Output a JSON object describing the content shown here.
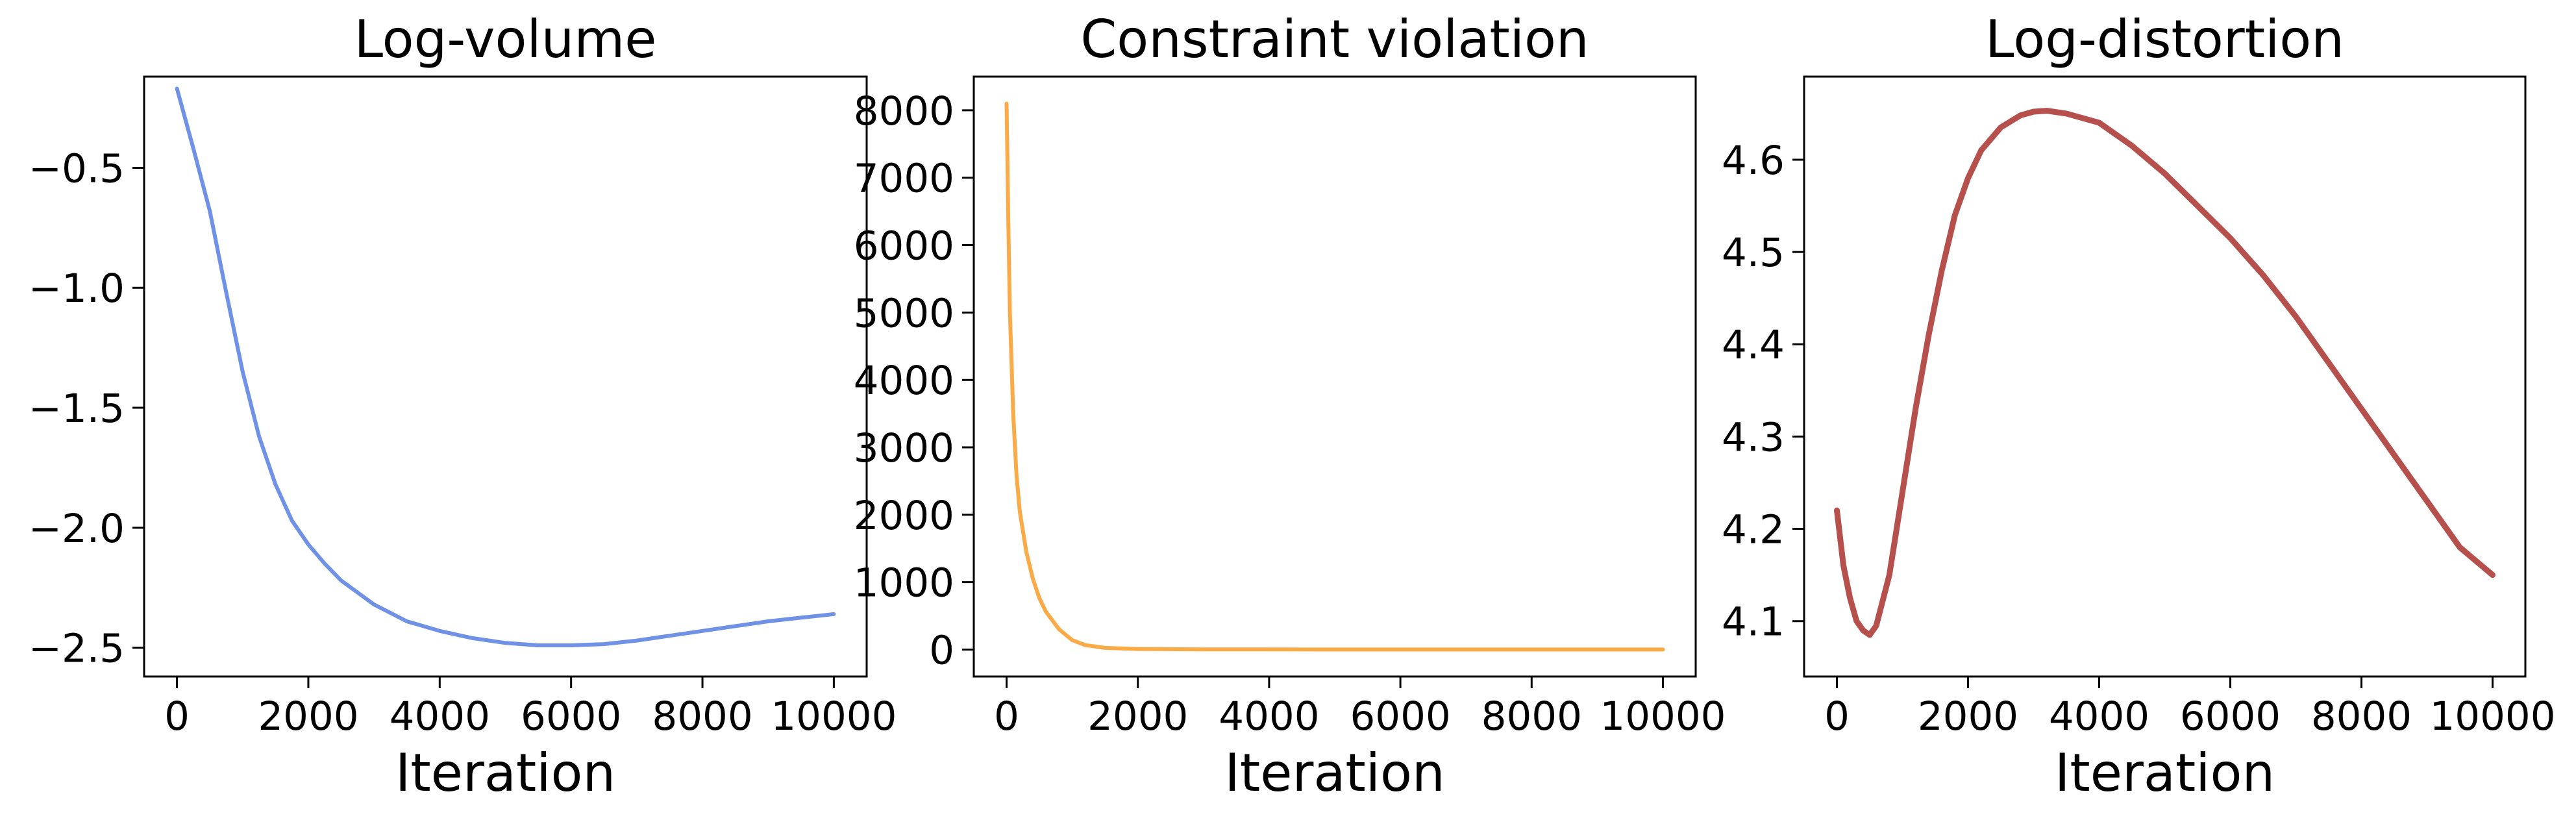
{
  "chart_data": [
    {
      "type": "line",
      "title": "Log-volume",
      "xlabel": "Iteration",
      "ylabel": "",
      "xlim": [
        -500,
        10500
      ],
      "ylim": [
        -2.62,
        -0.12
      ],
      "xticks": [
        0,
        2000,
        4000,
        6000,
        8000,
        10000
      ],
      "xtick_labels": [
        "0",
        "2000",
        "4000",
        "6000",
        "8000",
        "10000"
      ],
      "yticks": [
        -0.5,
        -1.0,
        -1.5,
        -2.0,
        -2.5
      ],
      "ytick_labels": [
        "−0.5",
        "−1.0",
        "−1.5",
        "−2.0",
        "−2.5"
      ],
      "grid": false,
      "color": "#7092e6",
      "series": [
        {
          "x": [
            0,
            250,
            500,
            750,
            1000,
            1250,
            1500,
            1750,
            2000,
            2250,
            2500,
            3000,
            3500,
            4000,
            4500,
            5000,
            5500,
            6000,
            6500,
            7000,
            7500,
            8000,
            8500,
            9000,
            9500,
            10000
          ],
          "values": [
            -0.17,
            -0.42,
            -0.68,
            -1.02,
            -1.35,
            -1.62,
            -1.82,
            -1.97,
            -2.07,
            -2.15,
            -2.22,
            -2.32,
            -2.39,
            -2.43,
            -2.46,
            -2.48,
            -2.49,
            -2.49,
            -2.485,
            -2.47,
            -2.45,
            -2.43,
            -2.41,
            -2.39,
            -2.375,
            -2.36
          ]
        }
      ]
    },
    {
      "type": "line",
      "title": "Constraint violation",
      "xlabel": "Iteration",
      "ylabel": "",
      "xlim": [
        -500,
        10500
      ],
      "ylim": [
        -400,
        8500
      ],
      "xticks": [
        0,
        2000,
        4000,
        6000,
        8000,
        10000
      ],
      "xtick_labels": [
        "0",
        "2000",
        "4000",
        "6000",
        "8000",
        "10000"
      ],
      "yticks": [
        0,
        1000,
        2000,
        3000,
        4000,
        5000,
        6000,
        7000,
        8000
      ],
      "ytick_labels": [
        "0",
        "1000",
        "2000",
        "3000",
        "4000",
        "5000",
        "6000",
        "7000",
        "8000"
      ],
      "grid": false,
      "color": "#fbaa48",
      "series": [
        {
          "x": [
            0,
            25,
            50,
            100,
            150,
            200,
            300,
            400,
            500,
            600,
            800,
            1000,
            1200,
            1500,
            2000,
            3000,
            4000,
            6000,
            8000,
            10000
          ],
          "values": [
            8100,
            6400,
            5000,
            3500,
            2600,
            2050,
            1450,
            1050,
            760,
            560,
            300,
            140,
            65,
            25,
            8,
            3,
            2,
            1,
            1,
            1
          ]
        }
      ]
    },
    {
      "type": "line",
      "title": "Log-distortion",
      "xlabel": "Iteration",
      "ylabel": "",
      "xlim": [
        -500,
        10500
      ],
      "ylim": [
        4.04,
        4.69
      ],
      "xticks": [
        0,
        2000,
        4000,
        6000,
        8000,
        10000
      ],
      "xtick_labels": [
        "0",
        "2000",
        "4000",
        "6000",
        "8000",
        "10000"
      ],
      "yticks": [
        4.1,
        4.2,
        4.3,
        4.4,
        4.5,
        4.6
      ],
      "ytick_labels": [
        "4.1",
        "4.2",
        "4.3",
        "4.4",
        "4.5",
        "4.6"
      ],
      "grid": false,
      "color": "#b5504c",
      "series": [
        {
          "x": [
            0,
            100,
            200,
            300,
            400,
            500,
            600,
            800,
            1000,
            1200,
            1400,
            1600,
            1800,
            2000,
            2200,
            2500,
            2800,
            3000,
            3200,
            3500,
            4000,
            4500,
            5000,
            5500,
            6000,
            6500,
            7000,
            7500,
            8000,
            8500,
            9000,
            9500,
            10000
          ],
          "values": [
            4.22,
            4.16,
            4.125,
            4.1,
            4.09,
            4.085,
            4.095,
            4.15,
            4.24,
            4.33,
            4.41,
            4.48,
            4.54,
            4.58,
            4.61,
            4.635,
            4.648,
            4.652,
            4.653,
            4.65,
            4.64,
            4.615,
            4.585,
            4.55,
            4.515,
            4.475,
            4.43,
            4.38,
            4.33,
            4.28,
            4.23,
            4.18,
            4.15
          ]
        }
      ]
    }
  ]
}
